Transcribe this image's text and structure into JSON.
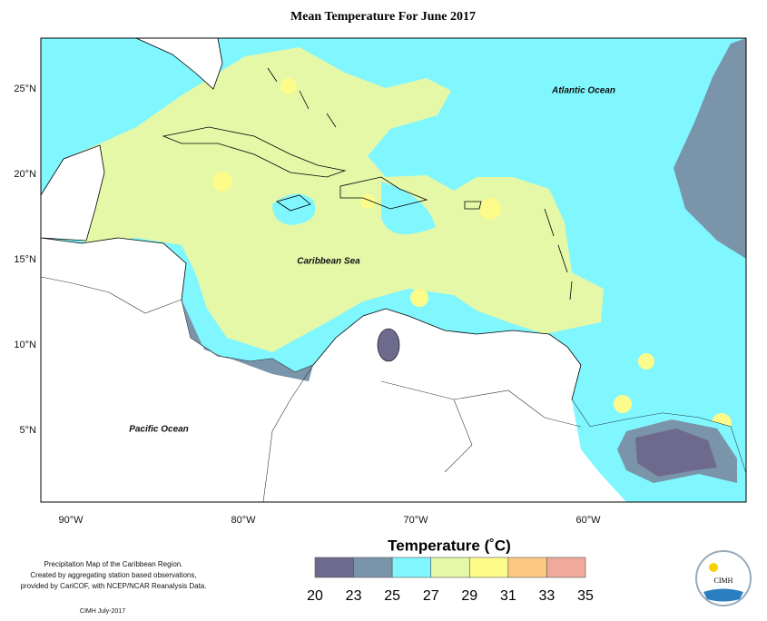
{
  "title": "Mean Temperature For June 2017",
  "map": {
    "lat_ticks": [
      "25°N",
      "20°N",
      "15°N",
      "10°N",
      "5°N"
    ],
    "lon_ticks": [
      "90°W",
      "80°W",
      "70°W",
      "60°W"
    ],
    "labels": [
      "Atlantic Ocean",
      "Caribbean Sea",
      "Pacific Ocean"
    ]
  },
  "legend": {
    "title": "Temperature (˚C)",
    "breaks": [
      20,
      23,
      25,
      27,
      29,
      31,
      33,
      35
    ],
    "colors": [
      "#6e6a8e",
      "#7a94aa",
      "#80f6ff",
      "#e4f8a8",
      "#fdfb8a",
      "#fcc983",
      "#f0aa9c"
    ]
  },
  "notes": [
    "Precipitation Map of the Caribbean Region.",
    "Created by aggregating station based observations,",
    "provided by CariCOF, with NCEP/NCAR Reanalysis Data."
  ],
  "credit": "CIMH July-2017",
  "logo": "CIMH"
}
